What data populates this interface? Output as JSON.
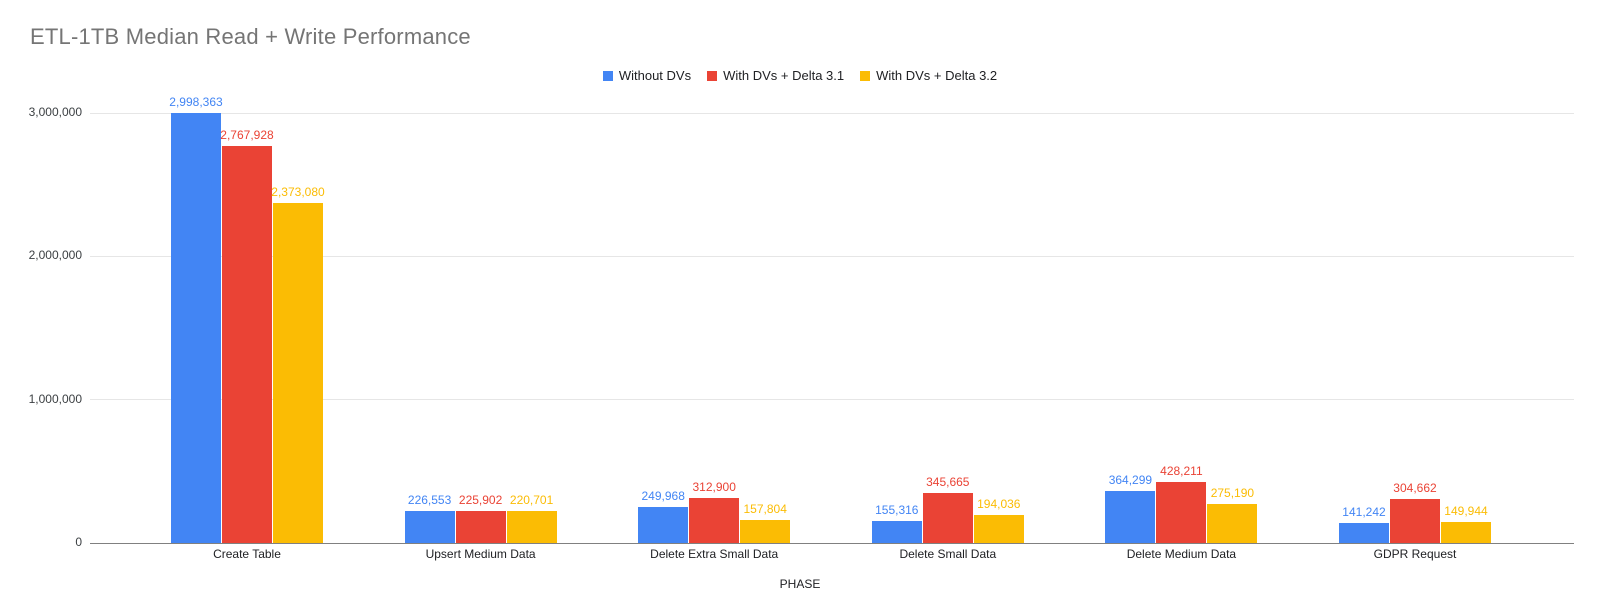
{
  "title": "ETL-1TB Median Read + Write Performance",
  "chart_data": {
    "type": "bar",
    "title": "ETL-1TB Median Read + Write Performance",
    "xlabel": "PHASE",
    "ylabel": "",
    "ylim": [
      0,
      3000000
    ],
    "grid": true,
    "legend_position": "top-center",
    "background": "#ffffff",
    "title_color": "#757575",
    "yticks": [
      "0",
      "1,000,000",
      "2,000,000",
      "3,000,000"
    ],
    "ytick_values": [
      0,
      1000000,
      2000000,
      3000000
    ],
    "categories": [
      "Create Table",
      "Upsert Medium Data",
      "Delete Extra Small Data",
      "Delete Small Data",
      "Delete Medium Data",
      "GDPR Request"
    ],
    "series": [
      {
        "name": "Without DVs",
        "color": "#4285F4",
        "values": [
          2998363,
          226553,
          249968,
          155316,
          364299,
          141242
        ],
        "value_labels": [
          "2,998,363",
          "226,553",
          "249,968",
          "155,316",
          "364,299",
          "141,242"
        ]
      },
      {
        "name": "With DVs + Delta 3.1",
        "color": "#EA4335",
        "values": [
          2767928,
          225902,
          312900,
          345665,
          428211,
          304662
        ],
        "value_labels": [
          "2,767,928",
          "225,902",
          "312,900",
          "345,665",
          "428,211",
          "304,662"
        ]
      },
      {
        "name": "With DVs + Delta 3.2",
        "color": "#FBBC04",
        "values": [
          2373080,
          220701,
          157804,
          194036,
          275190,
          149944
        ],
        "value_labels": [
          "2,373,080",
          "220,701",
          "157,804",
          "194,036",
          "275,190",
          "149,944"
        ]
      }
    ]
  }
}
